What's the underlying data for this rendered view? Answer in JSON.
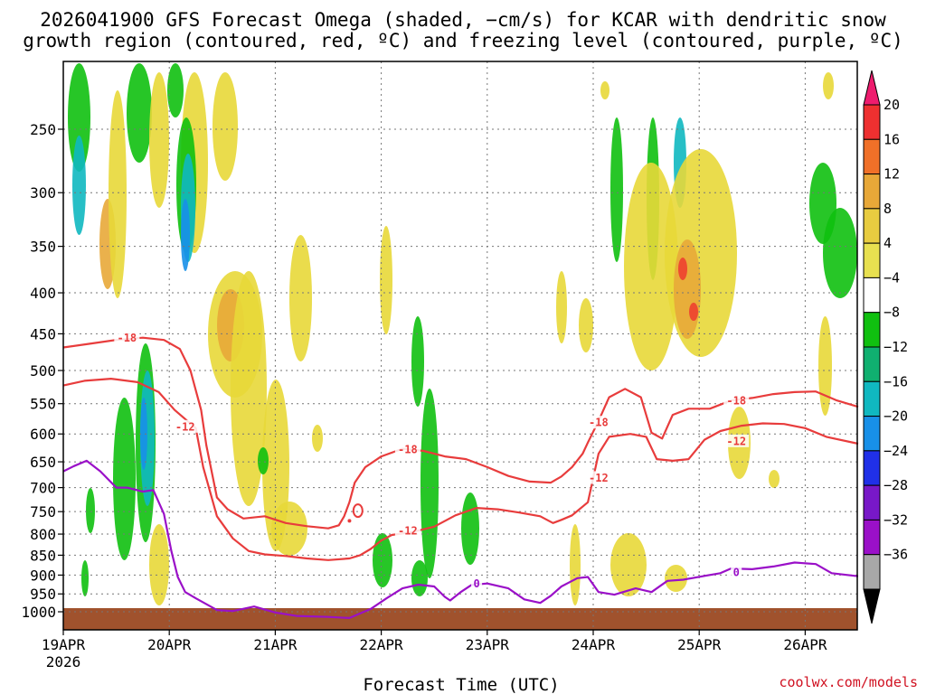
{
  "chart_data": {
    "type": "heatmap",
    "title": "2026041900 GFS Forecast Omega (shaded, −cm/s) for KCAR with dendritic snow growth region (contoured, red, ºC) and freezing level (contoured, purple, ºC)",
    "title_lines": [
      "2026041900 GFS Forecast Omega (shaded, −cm/s) for KCAR with dendritic snow",
      "growth region (contoured, red, ºC) and freezing level (contoured, purple, ºC)"
    ],
    "xlabel": "Forecast Time (UTC)",
    "year_label": "2026",
    "credit": "coolwx.com/models",
    "x_ticks": [
      "19APR",
      "20APR",
      "21APR",
      "22APR",
      "23APR",
      "24APR",
      "25APR",
      "26APR"
    ],
    "xlim_days": [
      0,
      7.5
    ],
    "y_ticks": [
      250,
      300,
      350,
      400,
      450,
      500,
      550,
      600,
      650,
      700,
      750,
      800,
      850,
      900,
      950,
      1000
    ],
    "ylim_hpa": [
      200,
      1025
    ],
    "colorbar": {
      "ticks": [
        "20",
        "16",
        "12",
        "8",
        "4",
        "−4",
        "−8",
        "−12",
        "−16",
        "−20",
        "−24",
        "−28",
        "−32",
        "−36"
      ],
      "colors": [
        "#ee1c6e",
        "#ee3030",
        "#f07028",
        "#e8a838",
        "#e8cc40",
        "#e8e050",
        "#ffffff",
        "#10c010",
        "#10b070",
        "#10b8c0",
        "#1890e8",
        "#2030e8",
        "#7818c8",
        "#9a10c8",
        "#a8a8a8",
        "#000000"
      ]
    },
    "series": [
      {
        "name": "-18",
        "color": "#e83c3c",
        "label_text": "-18",
        "label_points": [
          [
            0.6,
            455
          ],
          [
            3.25,
            627
          ],
          [
            5.05,
            580
          ],
          [
            6.35,
            545
          ]
        ],
        "points": [
          [
            0,
            468
          ],
          [
            0.25,
            463
          ],
          [
            0.5,
            458
          ],
          [
            0.75,
            455
          ],
          [
            0.95,
            458
          ],
          [
            1.1,
            470
          ],
          [
            1.2,
            500
          ],
          [
            1.3,
            560
          ],
          [
            1.35,
            620
          ],
          [
            1.45,
            720
          ],
          [
            1.55,
            745
          ],
          [
            1.7,
            765
          ],
          [
            1.9,
            760
          ],
          [
            2.1,
            775
          ],
          [
            2.3,
            782
          ],
          [
            2.5,
            787
          ],
          [
            2.6,
            780
          ],
          [
            2.65,
            760
          ],
          [
            2.7,
            730
          ],
          [
            2.75,
            690
          ],
          [
            2.85,
            660
          ],
          [
            3.0,
            640
          ],
          [
            3.2,
            626
          ],
          [
            3.4,
            630
          ],
          [
            3.6,
            640
          ],
          [
            3.8,
            645
          ],
          [
            4.0,
            660
          ],
          [
            4.2,
            677
          ],
          [
            4.4,
            688
          ],
          [
            4.6,
            690
          ],
          [
            4.7,
            678
          ],
          [
            4.8,
            660
          ],
          [
            4.9,
            635
          ],
          [
            4.95,
            615
          ],
          [
            5.05,
            578
          ],
          [
            5.15,
            540
          ],
          [
            5.3,
            527
          ],
          [
            5.45,
            540
          ],
          [
            5.55,
            598
          ],
          [
            5.65,
            608
          ],
          [
            5.75,
            568
          ],
          [
            5.9,
            558
          ],
          [
            6.1,
            558
          ],
          [
            6.3,
            545
          ],
          [
            6.5,
            541
          ],
          [
            6.7,
            535
          ],
          [
            6.9,
            532
          ],
          [
            7.1,
            531
          ],
          [
            7.3,
            545
          ],
          [
            7.5,
            555
          ]
        ]
      },
      {
        "name": "-12",
        "color": "#e83c3c",
        "label_text": "-12",
        "label_points": [
          [
            1.15,
            587
          ],
          [
            3.25,
            792
          ],
          [
            5.05,
            680
          ],
          [
            6.35,
            612
          ]
        ],
        "points": [
          [
            0,
            522
          ],
          [
            0.2,
            515
          ],
          [
            0.45,
            512
          ],
          [
            0.7,
            517
          ],
          [
            0.9,
            532
          ],
          [
            1.05,
            560
          ],
          [
            1.25,
            590
          ],
          [
            1.32,
            660
          ],
          [
            1.45,
            760
          ],
          [
            1.6,
            810
          ],
          [
            1.75,
            840
          ],
          [
            1.9,
            848
          ],
          [
            2.1,
            852
          ],
          [
            2.3,
            858
          ],
          [
            2.5,
            862
          ],
          [
            2.7,
            858
          ],
          [
            2.8,
            850
          ],
          [
            2.9,
            835
          ],
          [
            3.0,
            815
          ],
          [
            3.1,
            802
          ],
          [
            3.3,
            795
          ],
          [
            3.5,
            783
          ],
          [
            3.7,
            758
          ],
          [
            3.9,
            742
          ],
          [
            4.1,
            745
          ],
          [
            4.3,
            752
          ],
          [
            4.5,
            760
          ],
          [
            4.62,
            775
          ],
          [
            4.7,
            768
          ],
          [
            4.8,
            758
          ],
          [
            4.95,
            730
          ],
          [
            5.05,
            635
          ],
          [
            5.15,
            605
          ],
          [
            5.35,
            600
          ],
          [
            5.5,
            605
          ],
          [
            5.6,
            645
          ],
          [
            5.75,
            648
          ],
          [
            5.9,
            645
          ],
          [
            6.05,
            610
          ],
          [
            6.2,
            595
          ],
          [
            6.4,
            586
          ],
          [
            6.6,
            582
          ],
          [
            6.8,
            583
          ],
          [
            7.0,
            590
          ],
          [
            7.2,
            605
          ],
          [
            7.5,
            617
          ]
        ]
      },
      {
        "name": "0",
        "color": "#9a10c8",
        "label_text": "0",
        "label_points": [
          [
            3.9,
            922
          ],
          [
            6.35,
            892
          ]
        ],
        "points": [
          [
            0,
            668
          ],
          [
            0.1,
            658
          ],
          [
            0.22,
            648
          ],
          [
            0.35,
            668
          ],
          [
            0.5,
            700
          ],
          [
            0.6,
            700
          ],
          [
            0.75,
            708
          ],
          [
            0.85,
            705
          ],
          [
            0.95,
            755
          ],
          [
            1.02,
            840
          ],
          [
            1.08,
            905
          ],
          [
            1.15,
            945
          ],
          [
            1.25,
            962
          ],
          [
            1.45,
            995
          ],
          [
            1.6,
            998
          ],
          [
            1.8,
            985
          ],
          [
            2.0,
            1002
          ],
          [
            2.2,
            1012
          ],
          [
            2.5,
            1015
          ],
          [
            2.7,
            1018
          ],
          [
            2.9,
            992
          ],
          [
            3.05,
            962
          ],
          [
            3.2,
            935
          ],
          [
            3.35,
            925
          ],
          [
            3.5,
            930
          ],
          [
            3.6,
            958
          ],
          [
            3.65,
            968
          ],
          [
            3.75,
            945
          ],
          [
            3.85,
            926
          ],
          [
            4.0,
            922
          ],
          [
            4.2,
            935
          ],
          [
            4.35,
            965
          ],
          [
            4.5,
            975
          ],
          [
            4.6,
            955
          ],
          [
            4.7,
            930
          ],
          [
            4.85,
            908
          ],
          [
            4.95,
            905
          ],
          [
            5.05,
            945
          ],
          [
            5.2,
            952
          ],
          [
            5.4,
            935
          ],
          [
            5.55,
            945
          ],
          [
            5.7,
            915
          ],
          [
            5.85,
            912
          ],
          [
            6.05,
            902
          ],
          [
            6.2,
            895
          ],
          [
            6.3,
            883
          ],
          [
            6.5,
            885
          ],
          [
            6.7,
            878
          ],
          [
            6.9,
            868
          ],
          [
            7.1,
            872
          ],
          [
            7.25,
            895
          ],
          [
            7.5,
            903
          ]
        ]
      }
    ]
  }
}
